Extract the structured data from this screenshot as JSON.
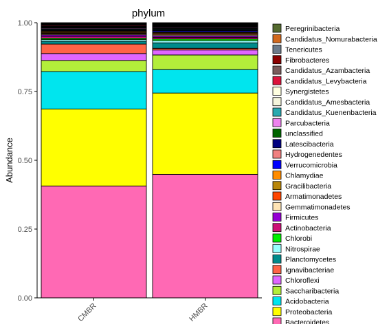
{
  "chart_data": {
    "type": "bar",
    "stacked": true,
    "title": "phylum",
    "xlabel": "",
    "ylabel": "Abundance",
    "ylim": [
      0,
      1
    ],
    "yticks": [
      "0.00",
      "0.25",
      "0.50",
      "0.75",
      "1.00"
    ],
    "categories": [
      "CMBR",
      "HMBR"
    ],
    "legend_position": "right",
    "series": [
      {
        "name": "Bacteroidetes",
        "color": "#FF69B4",
        "values": [
          0.403,
          0.448
        ]
      },
      {
        "name": "Proteobacteria",
        "color": "#FFFF00",
        "values": [
          0.277,
          0.295
        ]
      },
      {
        "name": "Acidobacteria",
        "color": "#00E5EE",
        "values": [
          0.135,
          0.085
        ]
      },
      {
        "name": "Saccharibacteria",
        "color": "#B3EE3A",
        "values": [
          0.04,
          0.053
        ]
      },
      {
        "name": "Chloroflexi",
        "color": "#E066FF",
        "values": [
          0.025,
          0.018
        ]
      },
      {
        "name": "Ignavibacteriae",
        "color": "#FF6347",
        "values": [
          0.034,
          0.006
        ]
      },
      {
        "name": "Planctomycetes",
        "color": "#008B8B",
        "values": [
          0.01,
          0.02
        ]
      },
      {
        "name": "Nitrospirae",
        "color": "#97FFFF",
        "values": [
          0.006,
          0.008
        ]
      },
      {
        "name": "Chlorobi",
        "color": "#00EE00",
        "values": [
          0.005,
          0.006
        ]
      },
      {
        "name": "Actinobacteria",
        "color": "#CD1076",
        "values": [
          0.006,
          0.006
        ]
      },
      {
        "name": "Firmicutes",
        "color": "#9400D3",
        "values": [
          0.006,
          0.006
        ]
      },
      {
        "name": "Gemmatimonadetes",
        "color": "#FFE4B5",
        "values": [
          0.003,
          0.004
        ]
      },
      {
        "name": "Armatimonadetes",
        "color": "#FF4500",
        "values": [
          0.003,
          0.004
        ]
      },
      {
        "name": "Gracilibacteria",
        "color": "#B8860B",
        "values": [
          0.002,
          0.003
        ]
      },
      {
        "name": "Chlamydiae",
        "color": "#FF8C00",
        "values": [
          0.004,
          0.003
        ]
      },
      {
        "name": "Verrucomicrobia",
        "color": "#0000FF",
        "values": [
          0.002,
          0.004
        ]
      },
      {
        "name": "Hydrogenedentes",
        "color": "#F08080",
        "values": [
          0.002,
          0.002
        ]
      },
      {
        "name": "Latescibacteria",
        "color": "#000080",
        "values": [
          0.003,
          0.003
        ]
      },
      {
        "name": "unclassified",
        "color": "#006400",
        "values": [
          0.003,
          0.003
        ]
      },
      {
        "name": "Parcubacteria",
        "color": "#EE82EE",
        "values": [
          0.003,
          0.003
        ]
      },
      {
        "name": "Candidatus_Kuenenbacteria",
        "color": "#2AAAB0",
        "values": [
          0.002,
          0.002
        ]
      },
      {
        "name": "Candidatus_Amesbacteria",
        "color": "#F5F5DC",
        "values": [
          0.002,
          0.002
        ]
      },
      {
        "name": "Synergistetes",
        "color": "#FFFFE0",
        "values": [
          0.002,
          0.002
        ]
      },
      {
        "name": "Candidatus_Levybacteria",
        "color": "#DC143C",
        "values": [
          0.003,
          0.002
        ]
      },
      {
        "name": "Candidatus_Azambacteria",
        "color": "#7A5C5C",
        "values": [
          0.002,
          0.002
        ]
      },
      {
        "name": "Fibrobacteres",
        "color": "#8B0000",
        "values": [
          0.002,
          0.002
        ]
      },
      {
        "name": "Tenericutes",
        "color": "#6C7B8B",
        "values": [
          0.002,
          0.002
        ]
      },
      {
        "name": "Candidatus_Nomurabacteria",
        "color": "#D2691E",
        "values": [
          0.002,
          0.002
        ]
      },
      {
        "name": "Peregrinibacteria",
        "color": "#556B2F",
        "values": [
          0.002,
          0.002
        ]
      }
    ]
  }
}
